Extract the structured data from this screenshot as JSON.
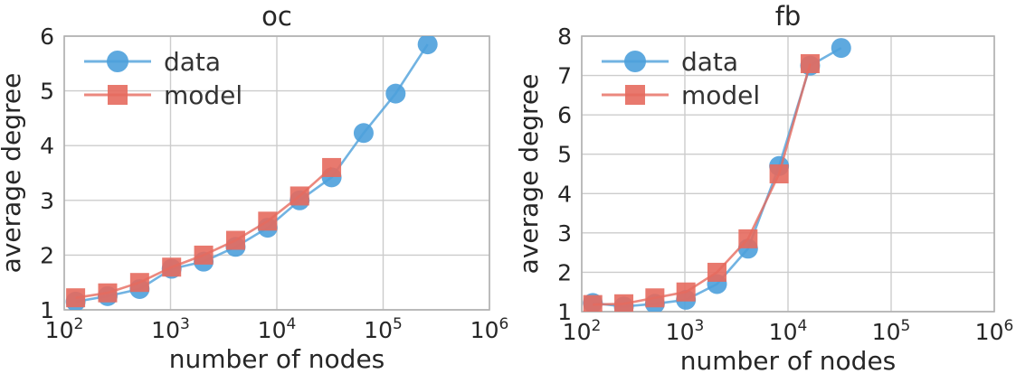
{
  "figure": {
    "background": "#ffffff",
    "text_color": "#262626",
    "grid_color": "#cccccc",
    "spine_color": "#b0b0b0"
  },
  "chart_data": [
    {
      "type": "line",
      "title": "oc",
      "xlabel": "number of nodes",
      "ylabel": "average degree",
      "xscale": "log",
      "xlim": [
        100,
        1000000
      ],
      "ylim": [
        1,
        6
      ],
      "xticks": [
        100,
        1000,
        10000,
        100000,
        1000000
      ],
      "xtick_labels": [
        "10^2",
        "10^3",
        "10^4",
        "10^5",
        "10^6"
      ],
      "yticks": [
        1,
        2,
        3,
        4,
        5,
        6
      ],
      "grid": true,
      "legend_position": "upper left",
      "legend": [
        "data",
        "model"
      ],
      "series": [
        {
          "name": "data",
          "marker": "circle",
          "color": "#4da0db",
          "x": [
            128,
            256,
            512,
            1024,
            2048,
            4096,
            8192,
            16384,
            32768,
            65536,
            131072,
            262144
          ],
          "y": [
            1.15,
            1.25,
            1.38,
            1.75,
            1.88,
            2.15,
            2.5,
            3.0,
            3.42,
            4.23,
            4.95,
            5.85
          ]
        },
        {
          "name": "model",
          "marker": "square",
          "color": "#e66a5e",
          "x": [
            128,
            256,
            512,
            1024,
            2048,
            4096,
            8192,
            16384,
            32768
          ],
          "y": [
            1.22,
            1.31,
            1.5,
            1.78,
            2.0,
            2.27,
            2.62,
            3.08,
            3.6
          ]
        }
      ]
    },
    {
      "type": "line",
      "title": "fb",
      "xlabel": "number of nodes",
      "ylabel": "average degree",
      "xscale": "log",
      "xlim": [
        100,
        1000000
      ],
      "ylim": [
        1,
        8
      ],
      "xticks": [
        100,
        1000,
        10000,
        100000,
        1000000
      ],
      "xtick_labels": [
        "10^2",
        "10^3",
        "10^4",
        "10^5",
        "10^6"
      ],
      "yticks": [
        1,
        2,
        3,
        4,
        5,
        6,
        7,
        8
      ],
      "grid": true,
      "legend_position": "upper left",
      "legend": [
        "data",
        "model"
      ],
      "series": [
        {
          "name": "data",
          "marker": "circle",
          "color": "#4da0db",
          "x": [
            128,
            256,
            512,
            1024,
            2048,
            4096,
            8192,
            16384,
            32768
          ],
          "y": [
            1.22,
            1.13,
            1.2,
            1.3,
            1.7,
            2.6,
            4.7,
            7.25,
            7.7
          ]
        },
        {
          "name": "model",
          "marker": "square",
          "color": "#e66a5e",
          "x": [
            128,
            256,
            512,
            1024,
            2048,
            4096,
            8192,
            16384
          ],
          "y": [
            1.18,
            1.2,
            1.35,
            1.5,
            2.0,
            2.85,
            4.5,
            7.3
          ]
        }
      ]
    }
  ]
}
